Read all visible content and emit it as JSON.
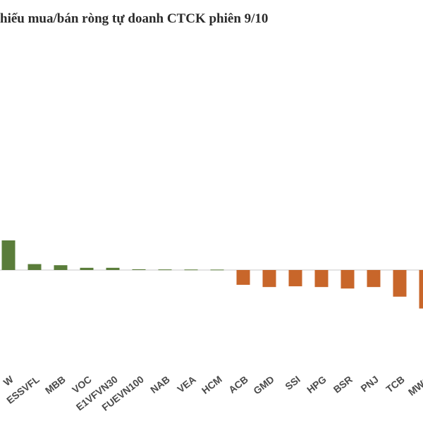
{
  "chart_data": {
    "type": "bar",
    "title": "hiếu mua/bán ròng tự doanh CTCK phiên 9/10",
    "categories": [
      "W",
      "ESSVFL",
      "MBB",
      "VOC",
      "E1VFVN30",
      "FUEVN100",
      "NAB",
      "VEA",
      "HCM",
      "ACB",
      "GMD",
      "SSI",
      "HPG",
      "BSR",
      "PNJ",
      "TCB",
      "MWG"
    ],
    "values": [
      40,
      8,
      6.5,
      3,
      3,
      1,
      0.8,
      0.7,
      0.6,
      -20,
      -23,
      -22,
      -23,
      -25,
      -23,
      -36,
      -52
    ],
    "ylim": [
      -85,
      180
    ],
    "grid": false,
    "colors": {
      "positive": "#5a7d3a",
      "negative": "#c8662a",
      "axis": "#c8c8c8"
    }
  }
}
